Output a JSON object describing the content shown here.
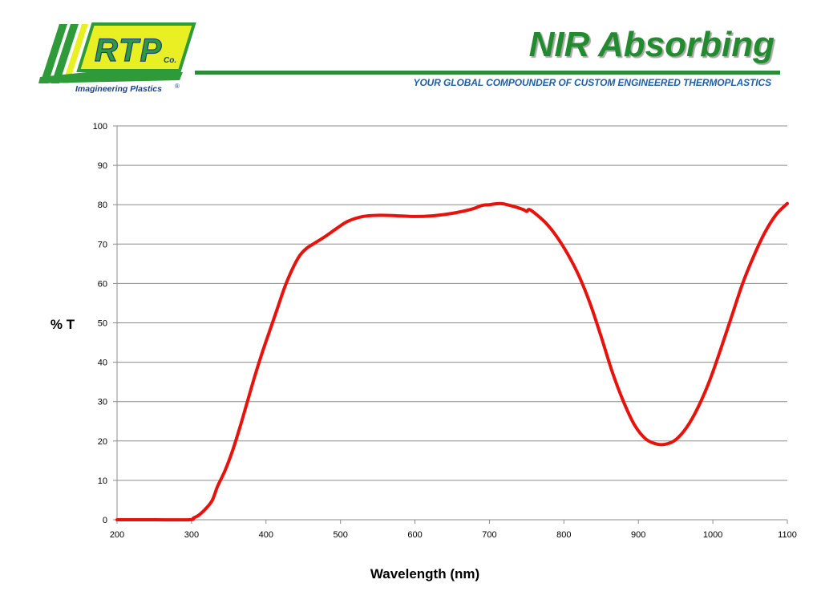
{
  "header": {
    "title": "NIR Absorbing",
    "tagline": "YOUR GLOBAL COMPOUNDER OF CUSTOM ENGINEERED THERMOPLASTICS",
    "rule_color": "#2e8b3c"
  },
  "logo": {
    "text": "RTP",
    "suffix": "Co.",
    "subtext": "Imagineering Plastics",
    "registered": "®",
    "colors": {
      "green": "#2e9a3a",
      "yellow": "#e8f024",
      "navy": "#1a3f8f"
    }
  },
  "chart_data": {
    "type": "line",
    "xlabel": "Wavelength (nm)",
    "ylabel": "% T",
    "xlim": [
      200,
      1100
    ],
    "ylim": [
      0,
      100
    ],
    "xticks": [
      200,
      300,
      400,
      500,
      600,
      700,
      800,
      900,
      1000,
      1100
    ],
    "yticks": [
      0,
      10,
      20,
      30,
      40,
      50,
      60,
      70,
      80,
      90,
      100
    ],
    "grid": "horizontal",
    "legend": "none",
    "series": [
      {
        "color": "#e8120c",
        "x": [
          200,
          250,
          297,
          303,
          310,
          320,
          328,
          335,
          345,
          355,
          365,
          375,
          385,
          395,
          405,
          415,
          425,
          435,
          445,
          455,
          465,
          480,
          495,
          510,
          530,
          550,
          575,
          600,
          625,
          650,
          675,
          690,
          700,
          715,
          730,
          745,
          750,
          753,
          760,
          775,
          790,
          805,
          820,
          835,
          850,
          865,
          880,
          895,
          910,
          925,
          937,
          950,
          965,
          980,
          995,
          1010,
          1025,
          1040,
          1055,
          1070,
          1085,
          1100
        ],
        "y": [
          0,
          0,
          0,
          0.5,
          1.2,
          3,
          5,
          8.5,
          12.5,
          17.5,
          23.5,
          30,
          36.5,
          42.5,
          48,
          53.5,
          59,
          63.5,
          67,
          69,
          70.2,
          72,
          74,
          75.8,
          77,
          77.3,
          77.2,
          77,
          77.2,
          77.8,
          78.8,
          79.8,
          80,
          80.3,
          79.7,
          78.8,
          78.3,
          78.8,
          78,
          75.5,
          72,
          67.5,
          62,
          55,
          46.5,
          37.5,
          30,
          24,
          20.5,
          19.2,
          19.2,
          20.3,
          23.5,
          28.5,
          35,
          43,
          51.5,
          60,
          67,
          73,
          77.5,
          80.3
        ]
      }
    ]
  }
}
